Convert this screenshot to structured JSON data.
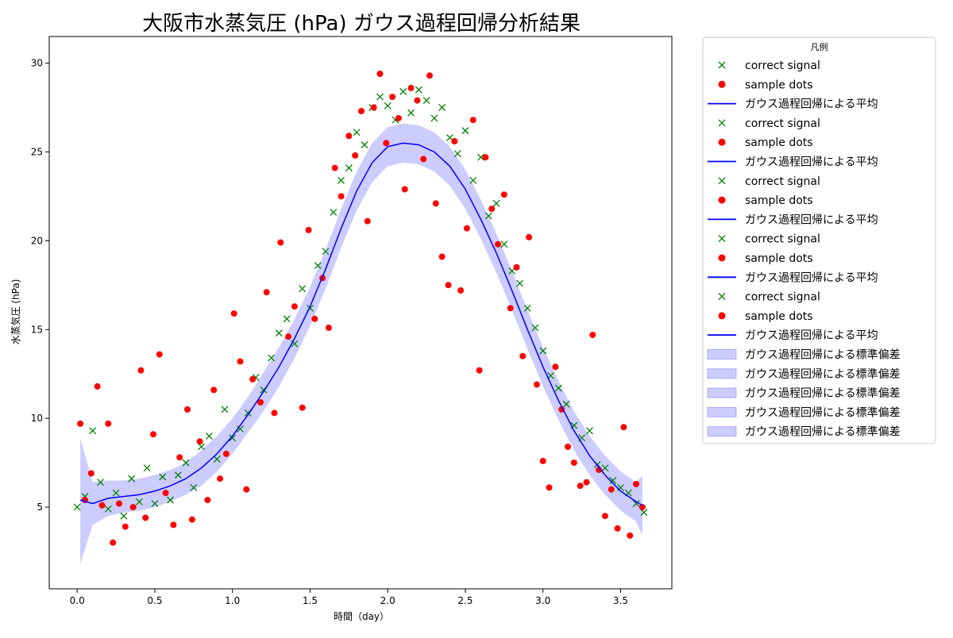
{
  "chart_data": {
    "type": "scatter",
    "title": "大阪市水蒸気圧 (hPa) ガウス過程回帰分析結果",
    "xlabel": "時間（day）",
    "ylabel": "水蒸気圧 (hPa)",
    "xlim": [
      -0.18,
      3.83
    ],
    "ylim": [
      0.4,
      31.5
    ],
    "xticks": [
      "0.0",
      "0.5",
      "1.0",
      "1.5",
      "2.0",
      "2.5",
      "3.0",
      "3.5"
    ],
    "xtick_values": [
      0.0,
      0.5,
      1.0,
      1.5,
      2.0,
      2.5,
      3.0,
      3.5
    ],
    "yticks": [
      "5",
      "10",
      "15",
      "20",
      "25",
      "30"
    ],
    "ytick_values": [
      5,
      10,
      15,
      20,
      25,
      30
    ],
    "grid": false,
    "legend": {
      "title": "凡例",
      "placement": "outside-right",
      "entries": [
        {
          "label": "correct signal",
          "kind": "x-marker",
          "color": "#008000"
        },
        {
          "label": "sample dots",
          "kind": "dot",
          "color": "#ff0000"
        },
        {
          "label": "ガウス過程回帰による平均",
          "kind": "line",
          "color": "#0000ff"
        },
        {
          "label": "correct signal",
          "kind": "x-marker",
          "color": "#008000"
        },
        {
          "label": "sample dots",
          "kind": "dot",
          "color": "#ff0000"
        },
        {
          "label": "ガウス過程回帰による平均",
          "kind": "line",
          "color": "#0000ff"
        },
        {
          "label": "correct signal",
          "kind": "x-marker",
          "color": "#008000"
        },
        {
          "label": "sample dots",
          "kind": "dot",
          "color": "#ff0000"
        },
        {
          "label": "ガウス過程回帰による平均",
          "kind": "line",
          "color": "#0000ff"
        },
        {
          "label": "correct signal",
          "kind": "x-marker",
          "color": "#008000"
        },
        {
          "label": "sample dots",
          "kind": "dot",
          "color": "#ff0000"
        },
        {
          "label": "ガウス過程回帰による平均",
          "kind": "line",
          "color": "#0000ff"
        },
        {
          "label": "correct signal",
          "kind": "x-marker",
          "color": "#008000"
        },
        {
          "label": "sample dots",
          "kind": "dot",
          "color": "#ff0000"
        },
        {
          "label": "ガウス過程回帰による平均",
          "kind": "line",
          "color": "#0000ff"
        },
        {
          "label": "ガウス過程回帰による標準偏差",
          "kind": "band",
          "color": "#0000ff"
        },
        {
          "label": "ガウス過程回帰による標準偏差",
          "kind": "band",
          "color": "#0000ff"
        },
        {
          "label": "ガウス過程回帰による標準偏差",
          "kind": "band",
          "color": "#0000ff"
        },
        {
          "label": "ガウス過程回帰による標準偏差",
          "kind": "band",
          "color": "#0000ff"
        },
        {
          "label": "ガウス過程回帰による標準偏差",
          "kind": "band",
          "color": "#0000ff"
        }
      ]
    },
    "colors": {
      "correct_signal": "#008000",
      "sample_dots": "#ff0000",
      "gp_mean": "#0000ff",
      "gp_std_band": "#0000ff"
    },
    "series": {
      "correct_signal": {
        "x": [
          0.0,
          0.05,
          0.1,
          0.15,
          0.2,
          0.25,
          0.3,
          0.35,
          0.4,
          0.45,
          0.5,
          0.55,
          0.6,
          0.65,
          0.7,
          0.75,
          0.8,
          0.85,
          0.9,
          0.95,
          1.0,
          1.05,
          1.1,
          1.15,
          1.2,
          1.25,
          1.3,
          1.35,
          1.4,
          1.45,
          1.5,
          1.55,
          1.6,
          1.65,
          1.7,
          1.75,
          1.8,
          1.85,
          1.9,
          1.95,
          2.0,
          2.05,
          2.1,
          2.15,
          2.2,
          2.25,
          2.3,
          2.35,
          2.4,
          2.45,
          2.5,
          2.55,
          2.6,
          2.65,
          2.7,
          2.75,
          2.8,
          2.85,
          2.9,
          2.95,
          3.0,
          3.05,
          3.1,
          3.15,
          3.2,
          3.25,
          3.3,
          3.35,
          3.4,
          3.45,
          3.5,
          3.55,
          3.6,
          3.65
        ],
        "y": [
          5.0,
          5.6,
          9.3,
          6.4,
          4.9,
          5.8,
          4.5,
          6.6,
          5.3,
          7.2,
          5.2,
          6.7,
          5.4,
          6.8,
          7.5,
          6.1,
          8.4,
          9.0,
          7.7,
          10.5,
          8.9,
          9.4,
          10.3,
          12.3,
          11.6,
          13.4,
          14.8,
          15.6,
          14.2,
          17.3,
          16.2,
          18.6,
          19.4,
          21.6,
          23.4,
          24.1,
          26.1,
          25.4,
          27.5,
          28.1,
          27.6,
          26.8,
          28.4,
          27.2,
          28.5,
          27.9,
          26.9,
          27.5,
          25.8,
          24.9,
          26.2,
          23.4,
          24.7,
          21.4,
          22.1,
          19.8,
          18.3,
          17.6,
          16.2,
          15.1,
          13.8,
          12.4,
          11.7,
          10.8,
          9.6,
          8.9,
          9.3,
          7.4,
          7.2,
          6.5,
          6.1,
          5.8,
          5.2,
          4.7
        ]
      },
      "sample_dots": {
        "x": [
          0.02,
          0.05,
          0.09,
          0.13,
          0.16,
          0.2,
          0.23,
          0.27,
          0.31,
          0.36,
          0.41,
          0.44,
          0.49,
          0.53,
          0.57,
          0.62,
          0.66,
          0.71,
          0.74,
          0.79,
          0.84,
          0.88,
          0.92,
          0.96,
          1.01,
          1.05,
          1.09,
          1.13,
          1.18,
          1.22,
          1.27,
          1.31,
          1.36,
          1.4,
          1.45,
          1.49,
          1.53,
          1.58,
          1.62,
          1.66,
          1.7,
          1.75,
          1.79,
          1.83,
          1.87,
          1.91,
          1.95,
          1.99,
          2.03,
          2.07,
          2.11,
          2.15,
          2.19,
          2.23,
          2.27,
          2.31,
          2.35,
          2.39,
          2.43,
          2.47,
          2.51,
          2.55,
          2.59,
          2.63,
          2.67,
          2.71,
          2.75,
          2.79,
          2.83,
          2.87,
          2.91,
          2.96,
          3.0,
          3.04,
          3.08,
          3.12,
          3.16,
          3.2,
          3.24,
          3.28,
          3.32,
          3.36,
          3.4,
          3.44,
          3.48,
          3.52,
          3.56,
          3.6,
          3.64
        ],
        "y": [
          9.7,
          5.4,
          6.9,
          11.8,
          5.1,
          9.7,
          3.0,
          5.2,
          3.9,
          5.0,
          12.7,
          4.4,
          9.1,
          13.6,
          5.8,
          4.0,
          7.8,
          10.5,
          4.3,
          8.7,
          5.4,
          11.6,
          6.6,
          8.0,
          15.9,
          13.2,
          6.0,
          12.2,
          10.9,
          17.1,
          10.3,
          19.9,
          14.6,
          16.3,
          10.6,
          20.6,
          15.6,
          17.9,
          15.1,
          24.1,
          22.5,
          25.9,
          24.8,
          27.3,
          21.1,
          27.5,
          29.4,
          25.5,
          28.1,
          26.9,
          22.9,
          28.6,
          27.9,
          24.6,
          29.3,
          22.1,
          19.1,
          17.5,
          25.6,
          17.2,
          20.7,
          26.8,
          12.7,
          24.7,
          21.8,
          19.8,
          22.6,
          16.2,
          18.5,
          13.5,
          20.2,
          11.9,
          7.6,
          6.1,
          12.9,
          10.5,
          8.4,
          7.5,
          6.2,
          6.4,
          14.7,
          7.1,
          4.5,
          6.0,
          3.8,
          9.5,
          3.4,
          6.3,
          5.0
        ]
      },
      "gp_mean": {
        "x": [
          0.02,
          0.1,
          0.2,
          0.3,
          0.4,
          0.5,
          0.6,
          0.7,
          0.8,
          0.9,
          1.0,
          1.1,
          1.2,
          1.3,
          1.4,
          1.5,
          1.6,
          1.7,
          1.8,
          1.9,
          2.0,
          2.1,
          2.2,
          2.3,
          2.4,
          2.5,
          2.6,
          2.7,
          2.8,
          2.9,
          3.0,
          3.1,
          3.2,
          3.3,
          3.4,
          3.5,
          3.6,
          3.64
        ],
        "y": [
          5.4,
          5.2,
          5.5,
          5.6,
          5.7,
          5.9,
          6.2,
          6.6,
          7.2,
          8.0,
          9.0,
          10.2,
          11.5,
          12.9,
          14.5,
          16.3,
          18.4,
          20.7,
          22.8,
          24.4,
          25.3,
          25.5,
          25.4,
          25.0,
          24.2,
          22.9,
          21.2,
          19.3,
          17.2,
          15.0,
          12.9,
          11.0,
          9.3,
          7.9,
          6.8,
          5.9,
          5.3,
          5.1
        ]
      },
      "gp_std_band": {
        "x": [
          0.02,
          0.1,
          0.2,
          0.3,
          0.4,
          0.5,
          0.6,
          0.7,
          0.8,
          0.9,
          1.0,
          1.1,
          1.2,
          1.3,
          1.4,
          1.5,
          1.6,
          1.7,
          1.8,
          1.9,
          2.0,
          2.1,
          2.2,
          2.3,
          2.4,
          2.5,
          2.6,
          2.7,
          2.8,
          2.9,
          3.0,
          3.1,
          3.2,
          3.3,
          3.4,
          3.5,
          3.6,
          3.64
        ],
        "lower": [
          1.8,
          4.0,
          4.5,
          4.7,
          4.8,
          5.0,
          5.3,
          5.7,
          6.2,
          7.0,
          8.0,
          9.2,
          10.4,
          11.8,
          13.4,
          15.2,
          17.3,
          19.6,
          21.7,
          23.3,
          24.2,
          24.4,
          24.3,
          23.9,
          23.1,
          21.8,
          20.1,
          18.2,
          16.1,
          13.9,
          11.8,
          9.9,
          8.2,
          6.8,
          5.7,
          4.8,
          4.2,
          3.4
        ],
        "upper": [
          8.9,
          6.4,
          6.5,
          6.5,
          6.6,
          6.8,
          7.1,
          7.5,
          8.2,
          9.0,
          10.0,
          11.2,
          12.6,
          14.0,
          15.6,
          17.4,
          19.5,
          21.8,
          23.9,
          25.5,
          26.4,
          26.6,
          26.5,
          26.1,
          25.3,
          24.0,
          22.3,
          20.4,
          18.3,
          16.1,
          14.0,
          12.1,
          10.4,
          9.0,
          7.9,
          7.0,
          6.4,
          6.8
        ]
      }
    }
  }
}
